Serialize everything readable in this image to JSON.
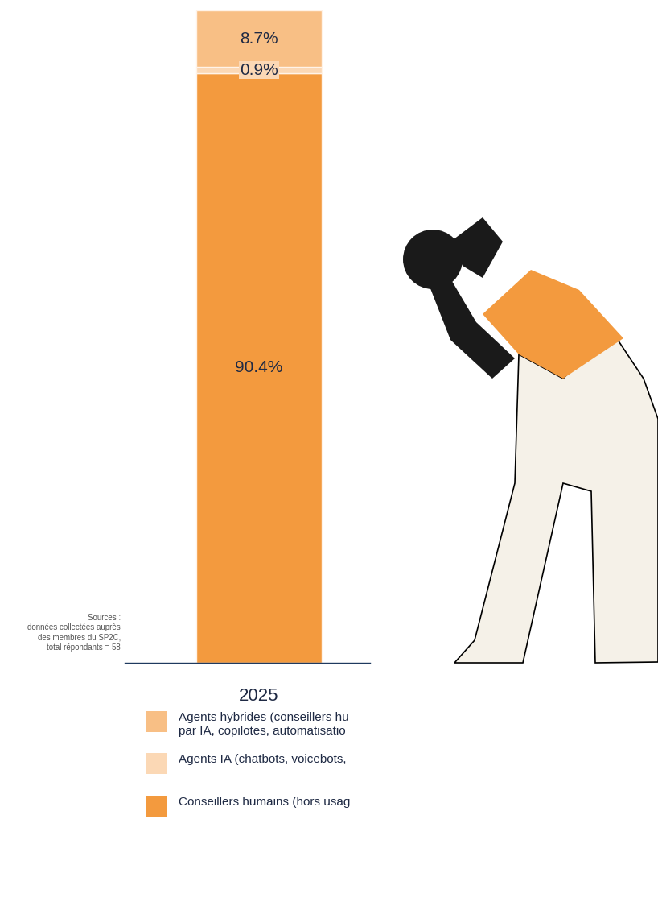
{
  "chart_data": {
    "type": "bar",
    "stacked": true,
    "categories": [
      "2025"
    ],
    "series": [
      {
        "name": "Conseillers humains (hors usag",
        "color": "#F39A3E",
        "values": [
          90.4
        ],
        "value_labels": [
          "90.4%"
        ]
      },
      {
        "name": "Agents IA (chatbots, voicebots,",
        "color": "#FBD8B5",
        "values": [
          0.9
        ],
        "value_labels": [
          "0.9%"
        ]
      },
      {
        "name": "Agents hybrides (conseillers hu\npar IA, copilotes, automatisatio",
        "color": "#F8BF85",
        "values": [
          8.7
        ],
        "value_labels": [
          "8.7%"
        ]
      }
    ],
    "ylim": [
      0,
      100
    ],
    "tick_labels": "x",
    "data_labels": true,
    "source": "Sources :\ndonnées collectées auprès\ndes membres du SP2C,\ntotal répondants = 58"
  }
}
